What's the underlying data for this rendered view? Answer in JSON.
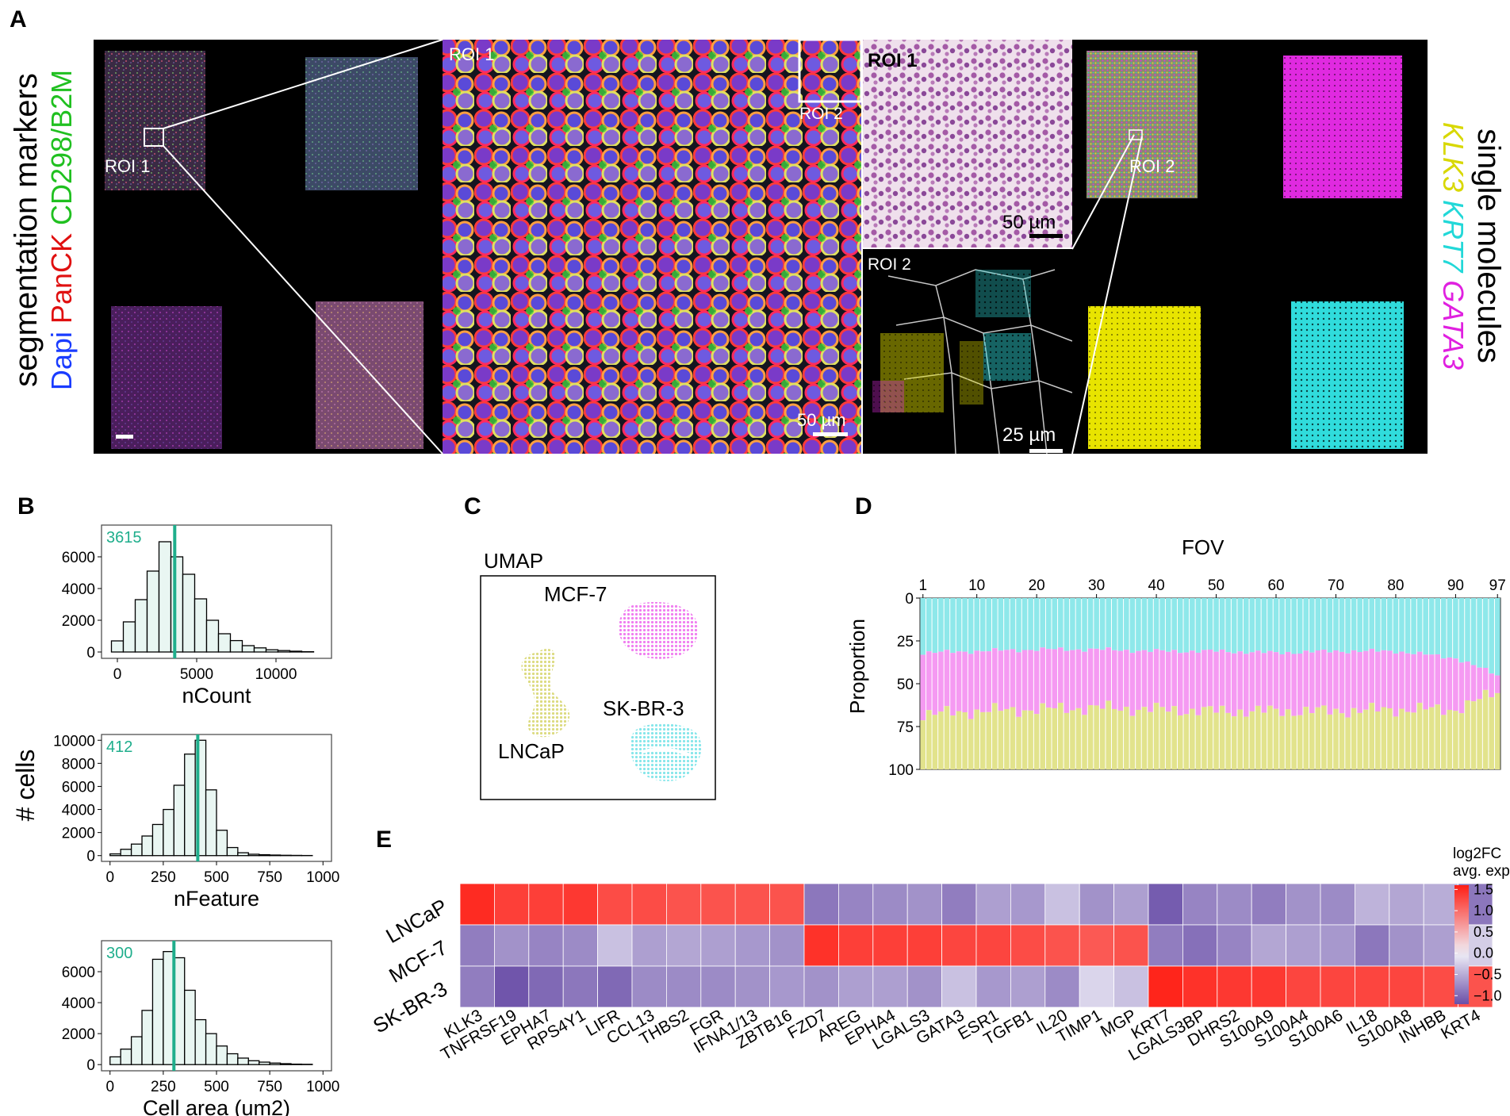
{
  "panel_labels": [
    "A",
    "B",
    "C",
    "D",
    "E"
  ],
  "panelA": {
    "left_title": "segmentation markers",
    "stain_labels": [
      {
        "text": "Dapi",
        "color": "#1a3cff"
      },
      {
        "text": "PanCK",
        "color": "#e01010"
      },
      {
        "text": "CD298/B2M",
        "color": "#20c020"
      }
    ],
    "right_title": "single molecules",
    "gene_labels": [
      {
        "text": "KLK3",
        "color": "#e6e600"
      },
      {
        "text": "KRT7",
        "color": "#2ee6e6"
      },
      {
        "text": "GATA3",
        "color": "#e020e0"
      }
    ],
    "roi1": "ROI 1",
    "roi2": "ROI 2",
    "scalebar_50": "50 µm",
    "scalebar_25": "25 µm"
  },
  "panelB": {
    "ylabel": "# cells",
    "histograms": [
      {
        "xlabel": "nCount",
        "median_label": "3615",
        "median": 3615,
        "xlim": [
          -1000,
          13500
        ],
        "ylim": [
          -400,
          8000
        ],
        "xticks": [
          "0",
          "5000",
          "10000"
        ],
        "xtick_values": [
          0,
          5000,
          10000
        ],
        "yticks": [
          "0",
          "2000",
          "4000",
          "6000"
        ],
        "ytick_values": [
          0,
          2000,
          4000,
          6000
        ],
        "bin_width": 750,
        "bin_start": 0,
        "counts": [
          700,
          1900,
          3300,
          5100,
          6950,
          6000,
          4900,
          3350,
          2000,
          1150,
          720,
          400,
          260,
          140,
          90,
          50,
          20
        ]
      },
      {
        "xlabel": "nFeature",
        "median_label": "412",
        "median": 412,
        "xlim": [
          -40,
          1040
        ],
        "ylim": [
          -500,
          10500
        ],
        "xticks": [
          "0",
          "250",
          "500",
          "750",
          "1000"
        ],
        "xtick_values": [
          0,
          250,
          500,
          750,
          1000
        ],
        "yticks": [
          "0",
          "2000",
          "4000",
          "6000",
          "8000",
          "10000"
        ],
        "ytick_values": [
          0,
          2000,
          4000,
          6000,
          8000,
          10000
        ],
        "bin_width": 50,
        "bin_start": 25,
        "counts": [
          150,
          550,
          1000,
          1700,
          2700,
          4000,
          6100,
          8800,
          10000,
          5700,
          2200,
          700,
          250,
          120,
          80,
          50,
          30,
          20,
          10
        ]
      },
      {
        "xlabel": "Cell area (um2)",
        "median_label": "300",
        "median": 300,
        "xlim": [
          -40,
          1040
        ],
        "ylim": [
          -400,
          8000
        ],
        "xticks": [
          "0",
          "250",
          "500",
          "750",
          "1000"
        ],
        "xtick_values": [
          0,
          250,
          500,
          750,
          1000
        ],
        "yticks": [
          "0",
          "2000",
          "4000",
          "6000"
        ],
        "ytick_values": [
          0,
          2000,
          4000,
          6000
        ],
        "bin_width": 50,
        "bin_start": 25,
        "counts": [
          500,
          1000,
          1800,
          3500,
          6800,
          7300,
          6900,
          4800,
          2900,
          2000,
          1200,
          700,
          420,
          250,
          160,
          100,
          60,
          30,
          20
        ]
      }
    ]
  },
  "panelC": {
    "title": "UMAP",
    "clusters": [
      {
        "label": "MCF-7",
        "color": "#f07ef0"
      },
      {
        "label": "LNCaP",
        "color": "#e0df86"
      },
      {
        "label": "SK-BR-3",
        "color": "#86e6ea"
      }
    ]
  },
  "panelD": {
    "top_title": "FOV",
    "ylabel": "Proportion",
    "xticks": [
      "1",
      "10",
      "20",
      "30",
      "40",
      "50",
      "60",
      "70",
      "80",
      "90",
      "97"
    ],
    "xtick_values": [
      1,
      10,
      20,
      30,
      40,
      50,
      60,
      70,
      80,
      90,
      97
    ],
    "yticks": [
      "0",
      "25",
      "50",
      "75",
      "100"
    ],
    "n_fov": 97,
    "colors": {
      "SK-BR-3": "#8ee8ea",
      "MCF-7": "#f59af2",
      "LNCaP": "#e2e38c"
    }
  },
  "chart_data": [
    {
      "type": "bar",
      "panel": "D",
      "title": "FOV",
      "ylabel": "Proportion",
      "x": [
        1,
        10,
        20,
        30,
        40,
        50,
        60,
        70,
        80,
        90,
        97
      ],
      "ylim": [
        0,
        100
      ],
      "series": [
        {
          "name": "SK-BR-3",
          "values": [
            32,
            31,
            30,
            30,
            31,
            31,
            32,
            31,
            31,
            35,
            45
          ]
        },
        {
          "name": "MCF-7",
          "values": [
            36,
            35,
            35,
            34,
            34,
            35,
            34,
            35,
            34,
            30,
            10
          ]
        },
        {
          "name": "LNCaP",
          "values": [
            32,
            34,
            35,
            36,
            35,
            34,
            34,
            34,
            35,
            35,
            45
          ]
        }
      ]
    },
    {
      "type": "heatmap",
      "panel": "E",
      "legend_title": "log2FC avg. exp.",
      "rows": [
        "LNCaP",
        "MCF-7",
        "SK-BR-3"
      ],
      "columns": [
        "KLK3",
        "TNFRSF19",
        "EPHA7",
        "RPS4Y1",
        "LIFR",
        "CCL13",
        "THBS2",
        "FGR",
        "IFNA1/13",
        "ZBTB16",
        "FZD7",
        "AREG",
        "EPHA4",
        "LGALS3",
        "GATA3",
        "ESR1",
        "TGFB1",
        "IL20",
        "TIMP1",
        "MGP",
        "KRT7",
        "LGALS3BP",
        "DHRS2",
        "S100A9",
        "S100A4",
        "S100A6",
        "IL18",
        "S100A8",
        "INHBB",
        "KRT4"
      ],
      "values": [
        [
          1.5,
          1.35,
          1.35,
          1.4,
          1.25,
          1.25,
          1.2,
          1.2,
          1.2,
          1.2,
          -0.9,
          -0.8,
          -0.75,
          -0.7,
          -0.85,
          -0.6,
          -0.65,
          -0.35,
          -0.7,
          -0.6,
          -1.1,
          -0.8,
          -0.75,
          -0.85,
          -0.7,
          -0.75,
          -0.45,
          -0.55,
          -0.5,
          -0.9
        ],
        [
          -0.85,
          -0.7,
          -0.8,
          -0.75,
          -0.35,
          -0.6,
          -0.55,
          -0.6,
          -0.65,
          -0.7,
          1.45,
          1.35,
          1.35,
          1.35,
          1.3,
          1.3,
          1.25,
          1.2,
          1.15,
          1.2,
          -0.85,
          -0.95,
          -0.8,
          -0.55,
          -0.6,
          -0.65,
          -0.9,
          -0.7,
          -0.6,
          -0.25
        ],
        [
          -0.85,
          -1.15,
          -1.0,
          -0.9,
          -1.0,
          -0.75,
          -0.75,
          -0.75,
          -0.7,
          -0.65,
          -0.7,
          -0.6,
          -0.6,
          -0.7,
          -0.35,
          -0.65,
          -0.6,
          -0.75,
          -0.2,
          -0.35,
          1.55,
          1.45,
          1.4,
          1.4,
          1.3,
          1.3,
          1.3,
          1.3,
          1.25,
          1.2
        ]
      ],
      "colorbar_ticks": [
        "1.5",
        "1.0",
        "0.5",
        "0.0",
        "−0.5",
        "−1.0"
      ],
      "colorbar_tick_values": [
        1.5,
        1.0,
        0.5,
        0.0,
        -0.5,
        -1.0
      ],
      "zlim": [
        -1.2,
        1.6
      ]
    }
  ]
}
